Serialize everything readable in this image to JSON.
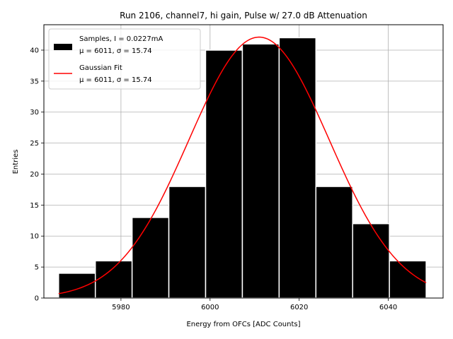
{
  "chart_data": {
    "type": "bar",
    "title": "Run 2106, channel7, hi gain, Pulse w/ 27.0 dB Attenuation",
    "xlabel": "Energy from OFCs [ADC Counts]",
    "ylabel": "Entries",
    "xlim": [
      5962.7,
      5971.1,
      6052.3
    ],
    "ylim": [
      0,
      44.1
    ],
    "xticks": [
      5980,
      6000,
      6020,
      6040
    ],
    "xtick_labels": [
      "5980",
      "6000",
      "6020",
      "6040"
    ],
    "yticks": [
      0,
      5,
      10,
      15,
      20,
      25,
      30,
      35,
      40
    ],
    "ytick_labels": [
      "0",
      "5",
      "10",
      "15",
      "20",
      "25",
      "30",
      "35",
      "40"
    ],
    "grid": true,
    "legend_position": "top-left",
    "histogram": {
      "name": "Samples, I = 0.0227mA",
      "stats": "μ = 6011, σ = 15.74",
      "bin_edges": [
        5966.0,
        5974.25,
        5982.5,
        5990.75,
        5999.0,
        6007.25,
        6015.5,
        6023.75,
        6032.0,
        6040.25,
        6048.5
      ],
      "values": [
        4,
        6,
        13,
        18,
        40,
        41,
        42,
        18,
        12,
        6
      ],
      "color": "#000000",
      "edgecolor": "#ffffff"
    },
    "fit": {
      "name": "Gaussian Fit",
      "stats": "μ = 6011, σ = 15.74",
      "mu": 6011,
      "sigma": 15.74,
      "amplitude": 42.1,
      "x_range": [
        5966.0,
        6048.5
      ],
      "color": "#ff0000"
    }
  }
}
